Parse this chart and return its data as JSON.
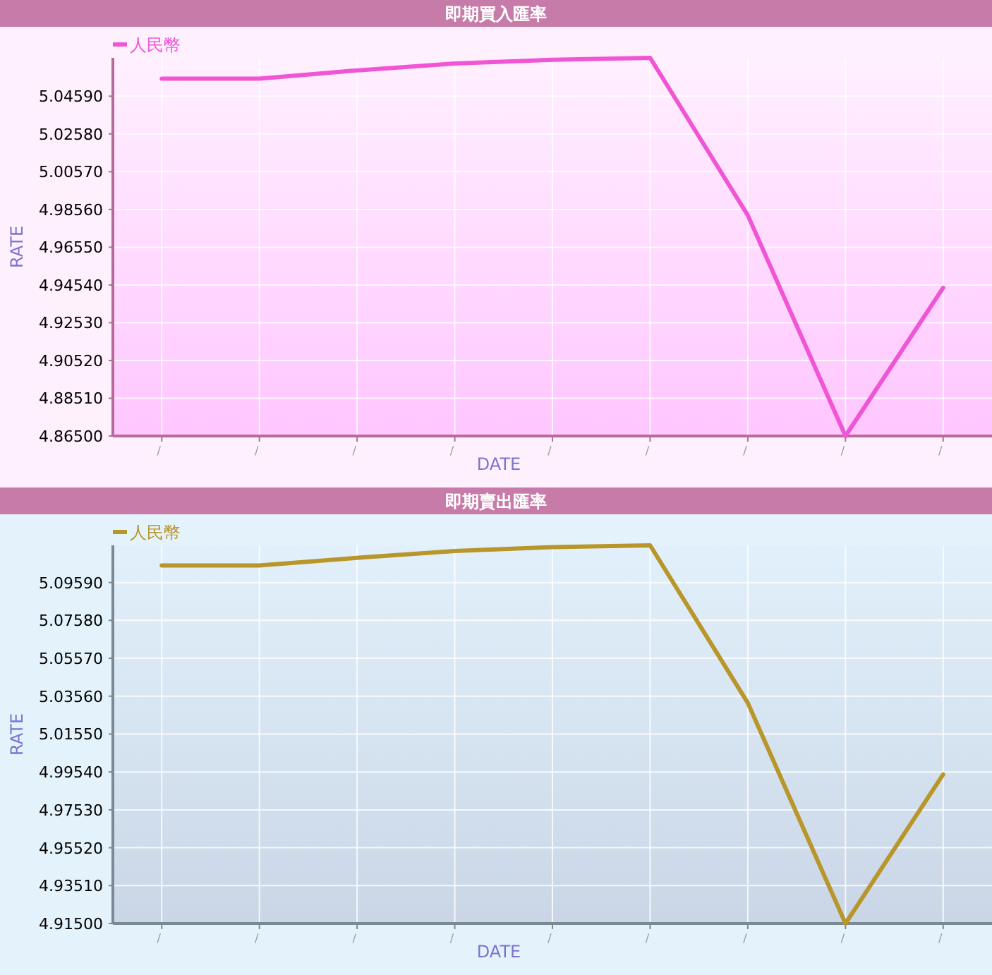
{
  "chart_data": [
    {
      "type": "line",
      "title": "即期買入匯率",
      "xlabel": "DATE",
      "ylabel": "RATE",
      "categories": [
        "/",
        "/",
        "/",
        "/",
        "/",
        "/",
        "/",
        "/",
        "/"
      ],
      "series": [
        {
          "name": "人民幣",
          "color": "#f055d5",
          "values": [
            5.0552,
            5.0552,
            5.0596,
            5.0633,
            5.0653,
            5.0663,
            4.9825,
            4.865,
            4.9439
          ]
        }
      ],
      "ylim": [
        4.865,
        5.0663
      ],
      "yticks": [
        {
          "value": 4.865,
          "label": "4.86500"
        },
        {
          "value": 4.8851,
          "label": "4.88510"
        },
        {
          "value": 4.9052,
          "label": "4.90520"
        },
        {
          "value": 4.9253,
          "label": "4.92530"
        },
        {
          "value": 4.9454,
          "label": "4.94540"
        },
        {
          "value": 4.9655,
          "label": "4.96550"
        },
        {
          "value": 4.9856,
          "label": "4.98560"
        },
        {
          "value": 5.0057,
          "label": "5.00570"
        },
        {
          "value": 5.0258,
          "label": "5.02580"
        },
        {
          "value": 5.0459,
          "label": "5.04590"
        }
      ],
      "grid": true,
      "legend": "top left",
      "marker": "none",
      "line_style": "solid"
    },
    {
      "type": "line",
      "title": "即期賣出匯率",
      "xlabel": "DATE",
      "ylabel": "RATE",
      "categories": [
        "/",
        "/",
        "/",
        "/",
        "/",
        "/",
        "/",
        "/",
        "/"
      ],
      "series": [
        {
          "name": "人民幣",
          "color": "#b8962a",
          "values": [
            5.1049,
            5.1049,
            5.109,
            5.1126,
            5.1147,
            5.1156,
            5.032,
            4.915,
            4.9941
          ]
        }
      ],
      "ylim": [
        4.915,
        5.1156
      ],
      "yticks": [
        {
          "value": 4.915,
          "label": "4.91500"
        },
        {
          "value": 4.9351,
          "label": "4.93510"
        },
        {
          "value": 4.9552,
          "label": "4.95520"
        },
        {
          "value": 4.9753,
          "label": "4.97530"
        },
        {
          "value": 4.9954,
          "label": "4.99540"
        },
        {
          "value": 5.0155,
          "label": "5.01550"
        },
        {
          "value": 5.0356,
          "label": "5.03560"
        },
        {
          "value": 5.0557,
          "label": "5.05570"
        },
        {
          "value": 5.0758,
          "label": "5.07580"
        },
        {
          "value": 5.0959,
          "label": "5.09590"
        }
      ],
      "grid": true,
      "legend": "top left",
      "marker": "none",
      "line_style": "solid"
    }
  ]
}
